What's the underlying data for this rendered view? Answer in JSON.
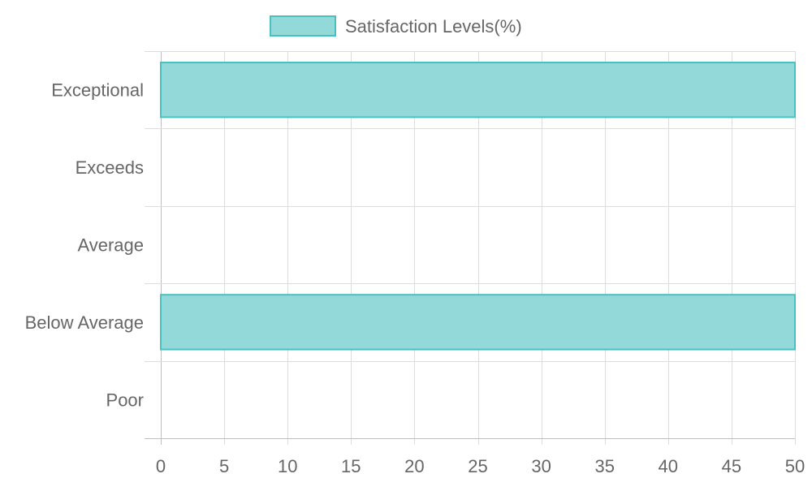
{
  "chart_data": {
    "type": "bar",
    "orientation": "horizontal",
    "categories": [
      "Exceptional",
      "Exceeds",
      "Average",
      "Below Average",
      "Poor"
    ],
    "series": [
      {
        "name": "Satisfaction Levels(%)",
        "values": [
          50,
          0,
          0,
          50,
          0
        ],
        "fill": "#94d9d9",
        "stroke": "#4bc0c0"
      }
    ],
    "xlim": [
      0,
      50
    ],
    "x_ticks": [
      0,
      5,
      10,
      15,
      20,
      25,
      30,
      35,
      40,
      45,
      50
    ],
    "grid": true,
    "legend_position": "top"
  },
  "colors": {
    "text": "#666666",
    "grid": "#dddddd",
    "axis": "#bfbfbf"
  }
}
